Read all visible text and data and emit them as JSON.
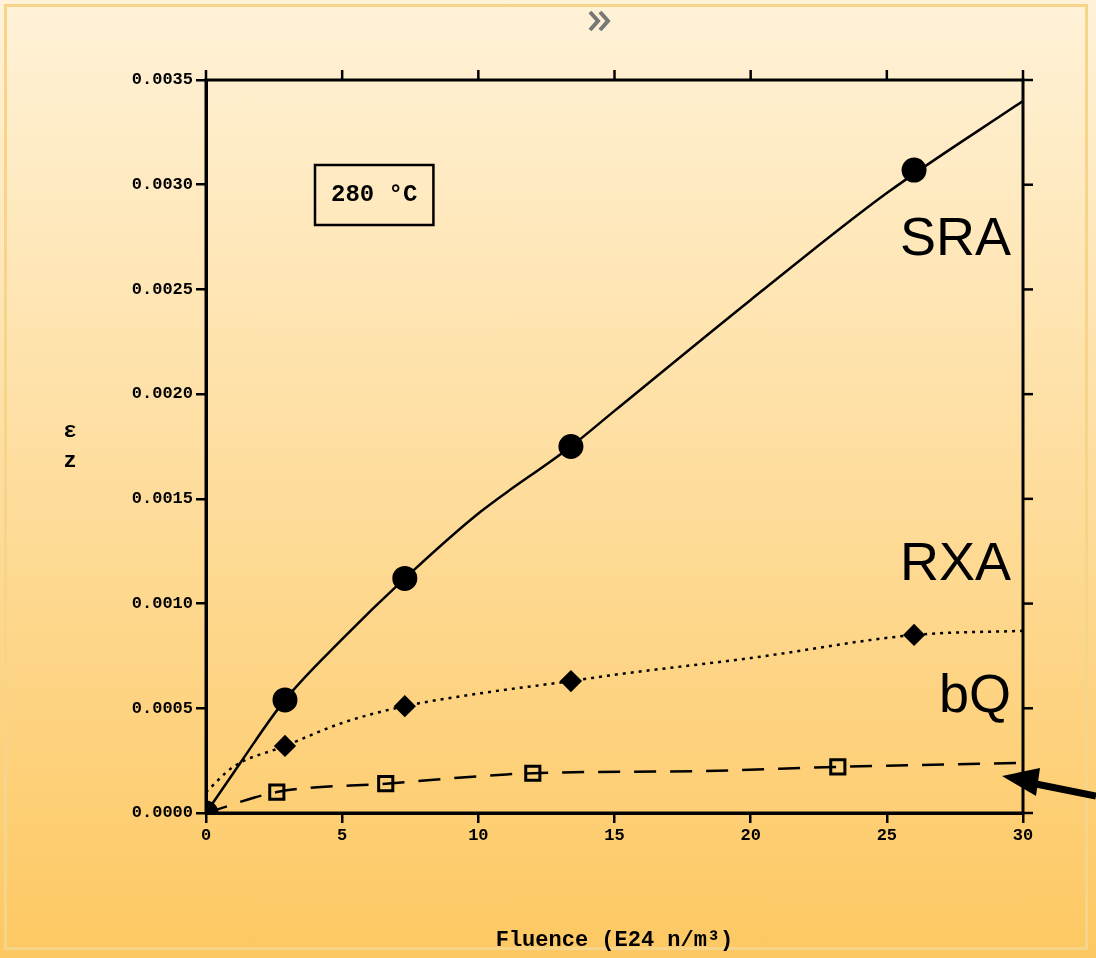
{
  "chart_data": {
    "type": "scatter",
    "xlabel": "Fluence (E24 n/m³)",
    "ylabel": "εz",
    "annotations": [
      "280 °C"
    ],
    "xlim": [
      0,
      30
    ],
    "xticks": [
      0,
      5,
      10,
      15,
      20,
      25,
      30
    ],
    "ylim": [
      0,
      0.0035
    ],
    "yticks": [
      {
        "value": 0,
        "label": "0.0000"
      },
      {
        "value": 0.0005,
        "label": "0.0005"
      },
      {
        "value": 0.001,
        "label": "0.0010"
      },
      {
        "value": 0.0015,
        "label": "0.0015"
      },
      {
        "value": 0.002,
        "label": "0.0020"
      },
      {
        "value": 0.0025,
        "label": "0.0025"
      },
      {
        "value": 0.003,
        "label": "0.0030"
      },
      {
        "value": 0.0035,
        "label": "0.0035"
      }
    ],
    "grid": false,
    "legend": "right",
    "series": [
      {
        "name": "SRA",
        "marker": "circle",
        "color": "#000000",
        "x": [
          0,
          2.9,
          7.3,
          13.4,
          26.0
        ],
        "values": [
          0,
          0.00054,
          0.00112,
          0.00175,
          0.00307
        ]
      },
      {
        "type": "line",
        "line_style": "solid",
        "color": "#000000",
        "x": [
          0,
          1,
          2.9,
          5,
          7.3,
          10,
          13.4,
          15,
          20,
          25,
          30
        ],
        "values": [
          0,
          0.00019,
          0.00054,
          0.00083,
          0.00112,
          0.00143,
          0.00175,
          0.00192,
          0.00245,
          0.00296,
          0.0034
        ]
      },
      {
        "name": "RXA",
        "marker": "diamond",
        "color": "#000000",
        "x": [
          2.9,
          7.3,
          13.4,
          26.0
        ],
        "values": [
          0.00032,
          0.00051,
          0.00063,
          0.00085
        ]
      },
      {
        "type": "line",
        "line_style": "dotted",
        "color": "#000000",
        "x": [
          0,
          1,
          2.9,
          5,
          7.3,
          10,
          13.4,
          15,
          20,
          26,
          30
        ],
        "values": [
          0.0001,
          0.00022,
          0.00032,
          0.00043,
          0.00051,
          0.00057,
          0.00063,
          0.00066,
          0.00074,
          0.00085,
          0.00087
        ]
      },
      {
        "name": "bQ",
        "marker": "square",
        "color": "#000000",
        "x": [
          2.6,
          6.6,
          12.0,
          23.2
        ],
        "values": [
          0.0001,
          0.00014,
          0.00019,
          0.00022
        ]
      },
      {
        "type": "line",
        "line_style": "dashed",
        "color": "#000000",
        "x": [
          0,
          2.6,
          6.6,
          12.0,
          18,
          23.2,
          30
        ],
        "values": [
          0,
          0.0001,
          0.00014,
          0.00019,
          0.0002,
          0.00022,
          0.00024
        ]
      }
    ]
  }
}
